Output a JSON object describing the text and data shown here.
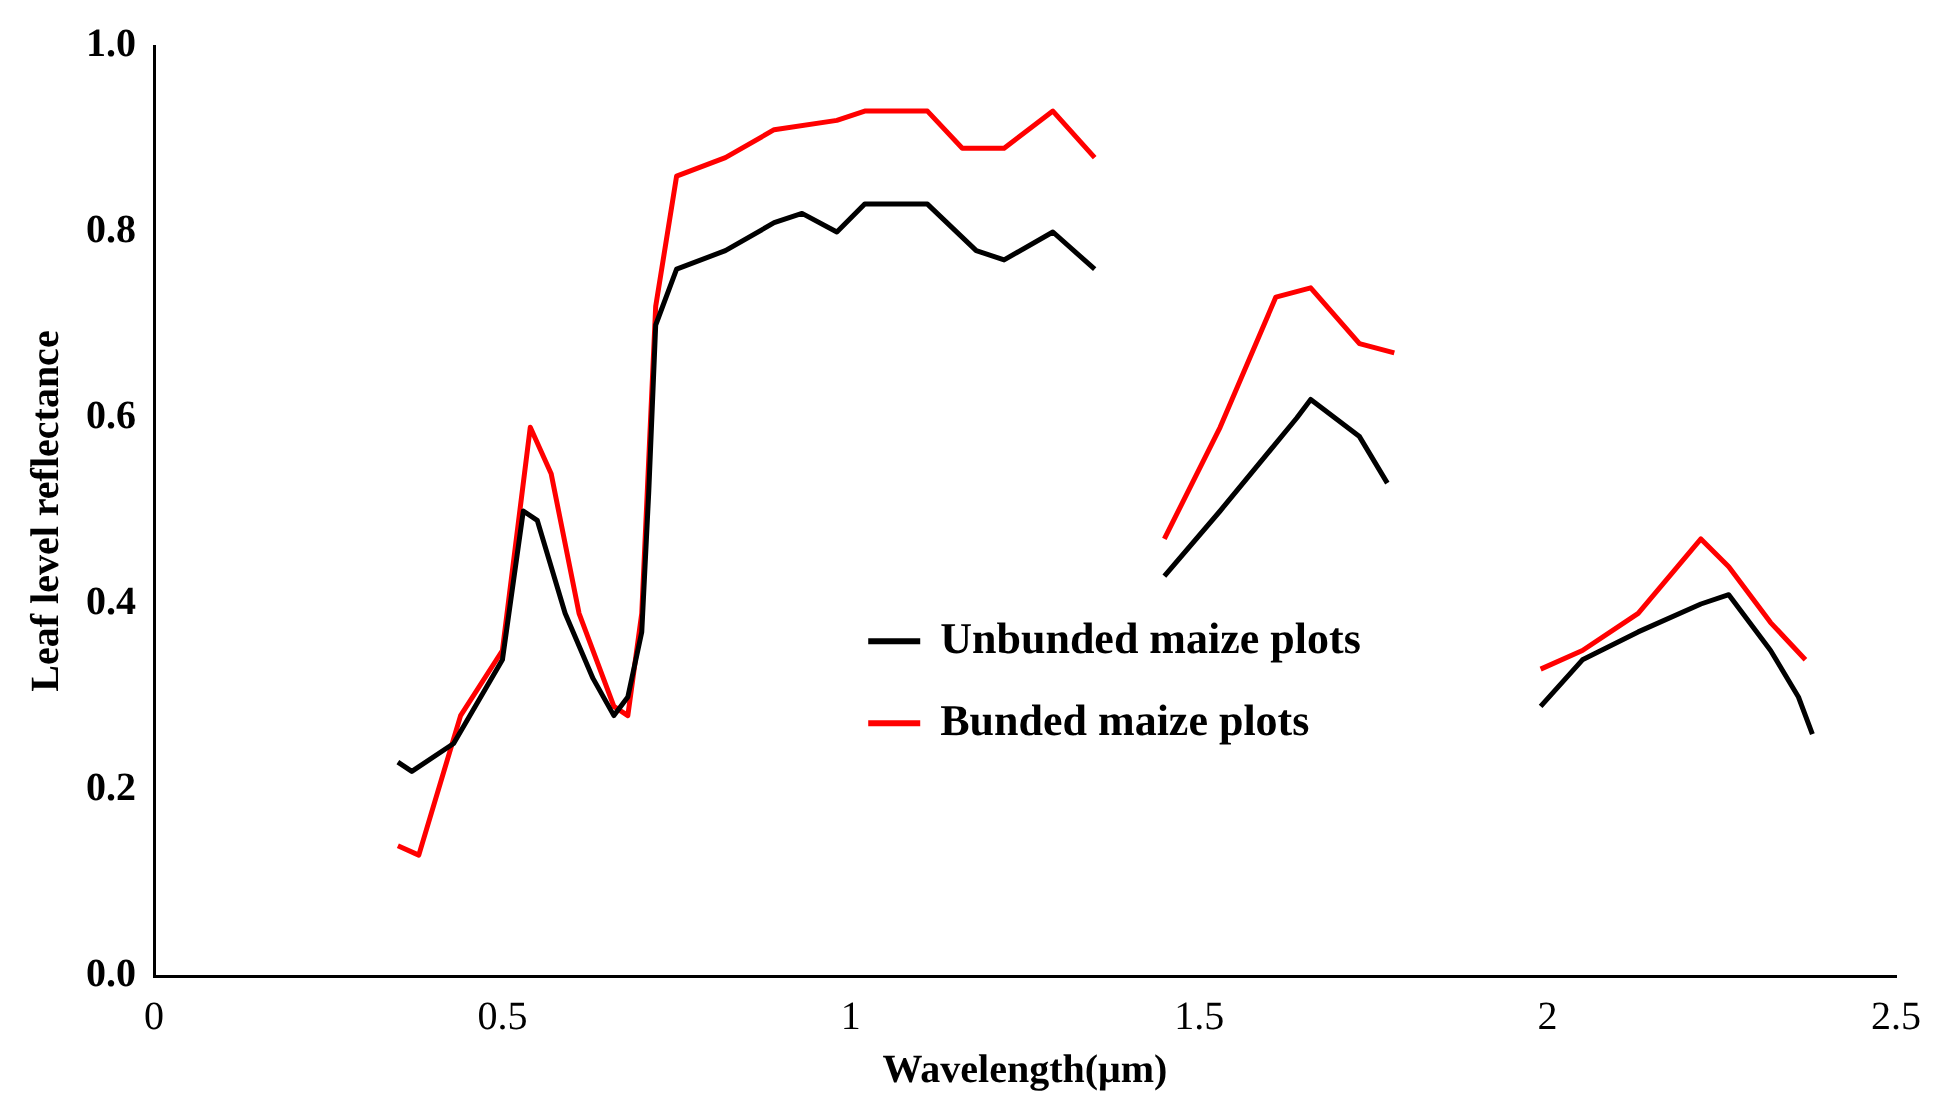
{
  "chart_data": {
    "type": "line",
    "xlabel": "Wavelength(μm)",
    "ylabel": "Leaf level reflectance",
    "xlim": [
      0,
      2.5
    ],
    "xticks": [
      0,
      0.5,
      1,
      1.5,
      2,
      2.5
    ],
    "ylim": [
      0,
      1
    ],
    "yticks": [
      {
        "value": 0,
        "label": "0.0"
      },
      {
        "value": 0.2,
        "label": "0.2"
      },
      {
        "value": 0.4,
        "label": "0.4"
      },
      {
        "value": 0.6,
        "label": "0.6"
      },
      {
        "value": 0.8,
        "label": "0.8"
      },
      {
        "value": 1,
        "label": "1.0"
      }
    ],
    "grid": false,
    "legend": "center",
    "marker": "none",
    "line_style": "solid",
    "series": [
      {
        "name": "Unbunded maize plots",
        "color": "#000000",
        "x": [
          0.35,
          0.37,
          0.43,
          0.5,
          0.53,
          0.55,
          0.59,
          0.63,
          0.66,
          0.68,
          0.7,
          0.71,
          0.72,
          0.75,
          0.82,
          0.89,
          0.93,
          0.98,
          1.02,
          1.11,
          1.18,
          1.22,
          1.29,
          1.35,
          1.4,
          1.45,
          1.53,
          1.64,
          1.66,
          1.73,
          1.77,
          1.88,
          1.99,
          2.05,
          2.13,
          2.22,
          2.26,
          2.32,
          2.36,
          2.38
        ],
        "values": [
          0.23,
          0.22,
          0.25,
          0.34,
          0.5,
          0.49,
          0.39,
          0.32,
          0.28,
          0.3,
          0.37,
          0.52,
          0.7,
          0.76,
          0.78,
          0.81,
          0.82,
          0.8,
          0.83,
          0.83,
          0.78,
          0.77,
          0.8,
          0.76,
          null,
          0.43,
          0.5,
          0.6,
          0.62,
          0.58,
          0.53,
          null,
          0.29,
          0.34,
          0.37,
          0.4,
          0.41,
          0.35,
          0.3,
          0.26
        ]
      },
      {
        "name": "Bunded maize plots",
        "color": "#ff0000",
        "x": [
          0.35,
          0.38,
          0.44,
          0.5,
          0.54,
          0.57,
          0.61,
          0.66,
          0.68,
          0.7,
          0.72,
          0.75,
          0.82,
          0.89,
          0.98,
          1.02,
          1.11,
          1.16,
          1.22,
          1.29,
          1.35,
          1.4,
          1.45,
          1.53,
          1.61,
          1.66,
          1.73,
          1.78,
          1.88,
          1.99,
          2.05,
          2.13,
          2.22,
          2.26,
          2.32,
          2.37
        ],
        "values": [
          0.14,
          0.13,
          0.28,
          0.35,
          0.59,
          0.54,
          0.39,
          0.29,
          0.28,
          0.39,
          0.72,
          0.86,
          0.88,
          0.91,
          0.92,
          0.93,
          0.93,
          0.89,
          0.89,
          0.93,
          0.88,
          null,
          0.47,
          0.59,
          0.73,
          0.74,
          0.68,
          0.67,
          null,
          0.33,
          0.35,
          0.39,
          0.47,
          0.44,
          0.38,
          0.34
        ]
      }
    ]
  }
}
